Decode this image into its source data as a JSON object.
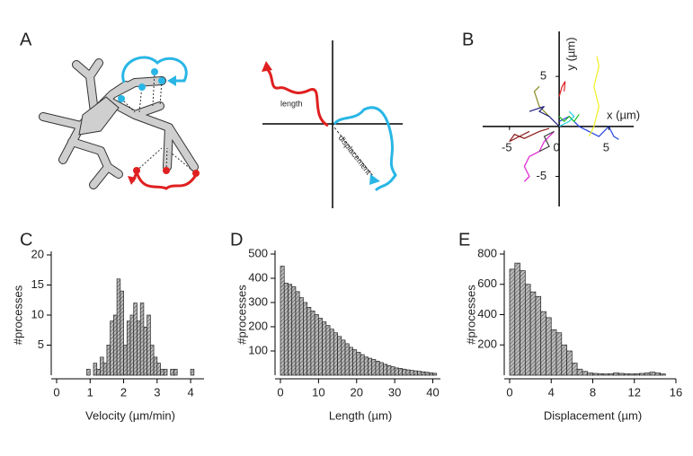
{
  "diagram": {
    "panel": "A",
    "labels": [
      "length",
      "displacement"
    ]
  },
  "chart_data": [
    {
      "type": "line",
      "panel": "B",
      "xlabel": "x (µm)",
      "ylabel": "y (µm)",
      "xlim": [
        -7.7,
        7.5
      ],
      "ylim": [
        -8,
        9.5
      ],
      "xticks": [
        -5,
        0,
        5
      ],
      "yticks": [
        -5,
        5
      ],
      "series": [
        {
          "color": "#8b1a1a",
          "x": [
            -3,
            -4,
            -5,
            -4.5,
            -3.5,
            -2,
            -1
          ],
          "y": [
            -0.5,
            -1,
            -1.5,
            -0.8,
            -1.2,
            -0.5,
            -0.2
          ]
        },
        {
          "color": "#e020d0",
          "x": [
            -0.5,
            -1.5,
            -2,
            -3,
            -3.5,
            -3,
            -3.5
          ],
          "y": [
            -0.5,
            -1.5,
            -2.5,
            -3,
            -4,
            -5,
            -5.5
          ]
        },
        {
          "color": "#8a8a20",
          "x": [
            -1,
            -2,
            -2.5,
            -2
          ],
          "y": [
            1,
            2,
            3.5,
            4
          ]
        },
        {
          "color": "#2040e0",
          "x": [
            0,
            1,
            2,
            3,
            4,
            5,
            5.5,
            6
          ],
          "y": [
            0.5,
            1,
            0,
            -0.5,
            -1,
            0,
            -1,
            -1.3
          ]
        },
        {
          "color": "#f0f020",
          "x": [
            3,
            3.5,
            4,
            3.5,
            4,
            3.8
          ],
          "y": [
            -1,
            0,
            2,
            4,
            6,
            7
          ]
        },
        {
          "color": "#202080",
          "x": [
            0,
            -1,
            -2,
            -1.5,
            -3
          ],
          "y": [
            0,
            1,
            1.5,
            2,
            1.5
          ]
        },
        {
          "color": "#20c020",
          "x": [
            0,
            0.5,
            1,
            1.5,
            2
          ],
          "y": [
            1,
            0.5,
            1,
            0.5,
            1.2
          ]
        },
        {
          "color": "#20d0e0",
          "x": [
            0,
            1,
            1.5,
            1
          ],
          "y": [
            0,
            0.5,
            1,
            1.5
          ]
        },
        {
          "color": "#e02020",
          "x": [
            0,
            0.3,
            0.6,
            0.5
          ],
          "y": [
            3,
            4,
            4.5,
            3.5
          ]
        },
        {
          "color": "#404040",
          "x": [
            -0.5,
            -1.5,
            -1,
            -2
          ],
          "y": [
            -0.5,
            -1,
            -2,
            -2.5
          ]
        }
      ]
    },
    {
      "type": "histogram",
      "panel": "C",
      "xlabel": "Velocity (µm/min)",
      "ylabel": "#processes",
      "xlim": [
        0,
        4.4
      ],
      "ylim": [
        0,
        20
      ],
      "xticks": [
        0,
        1,
        2,
        3,
        4
      ],
      "yticks": [
        5,
        10,
        15,
        20
      ],
      "bins": [
        0.9,
        1.0,
        1.1,
        1.2,
        1.3,
        1.4,
        1.5,
        1.6,
        1.7,
        1.8,
        1.9,
        2.0,
        2.1,
        2.2,
        2.3,
        2.4,
        2.5,
        2.6,
        2.7,
        2.8,
        2.9,
        3.0,
        3.1,
        3.2,
        3.3,
        3.4,
        3.5,
        3.6,
        3.7,
        3.8,
        3.9,
        4.0,
        4.1
      ],
      "values": [
        1,
        0,
        2,
        1,
        3,
        2,
        5,
        9,
        10,
        16,
        14,
        5,
        9,
        10,
        12,
        9,
        12,
        8,
        10,
        5,
        3,
        2,
        1,
        1,
        0,
        1,
        1,
        0,
        0,
        0,
        0,
        1
      ]
    },
    {
      "type": "histogram",
      "panel": "D",
      "xlabel": "Length (µm)",
      "ylabel": "#processes",
      "xlim": [
        0,
        42
      ],
      "ylim": [
        0,
        500
      ],
      "xticks": [
        0,
        10,
        20,
        30,
        40
      ],
      "yticks": [
        100,
        200,
        300,
        400,
        500
      ],
      "bins": [
        0,
        1,
        2,
        3,
        4,
        5,
        6,
        7,
        8,
        9,
        10,
        11,
        12,
        13,
        14,
        15,
        16,
        17,
        18,
        19,
        20,
        21,
        22,
        23,
        24,
        25,
        26,
        27,
        28,
        29,
        30,
        31,
        32,
        33,
        34,
        35,
        36,
        37,
        38,
        39,
        40,
        41
      ],
      "values": [
        450,
        380,
        375,
        365,
        345,
        320,
        300,
        280,
        265,
        250,
        235,
        220,
        205,
        190,
        175,
        160,
        145,
        130,
        115,
        105,
        95,
        85,
        75,
        70,
        65,
        58,
        52,
        45,
        40,
        35,
        30,
        28,
        25,
        22,
        20,
        18,
        16,
        14,
        12,
        10,
        8
      ]
    },
    {
      "type": "histogram",
      "panel": "E",
      "xlabel": "Displacement (µm)",
      "ylabel": "#processes",
      "xlim": [
        0,
        16
      ],
      "ylim": [
        0,
        800
      ],
      "xticks": [
        0,
        4,
        8,
        12,
        16
      ],
      "yticks": [
        200,
        400,
        600,
        800
      ],
      "bins": [
        0,
        0.5,
        1,
        1.5,
        2,
        2.5,
        3,
        3.5,
        4,
        4.5,
        5,
        5.5,
        6,
        6.5,
        7,
        7.5,
        8,
        8.5,
        9,
        9.5,
        10,
        10.5,
        11,
        11.5,
        12,
        12.5,
        13,
        13.5,
        14,
        14.5,
        15
      ],
      "values": [
        700,
        740,
        690,
        600,
        550,
        520,
        420,
        380,
        300,
        280,
        200,
        160,
        80,
        40,
        25,
        15,
        12,
        10,
        8,
        10,
        15,
        12,
        10,
        8,
        10,
        12,
        15,
        20,
        15,
        8
      ]
    }
  ]
}
